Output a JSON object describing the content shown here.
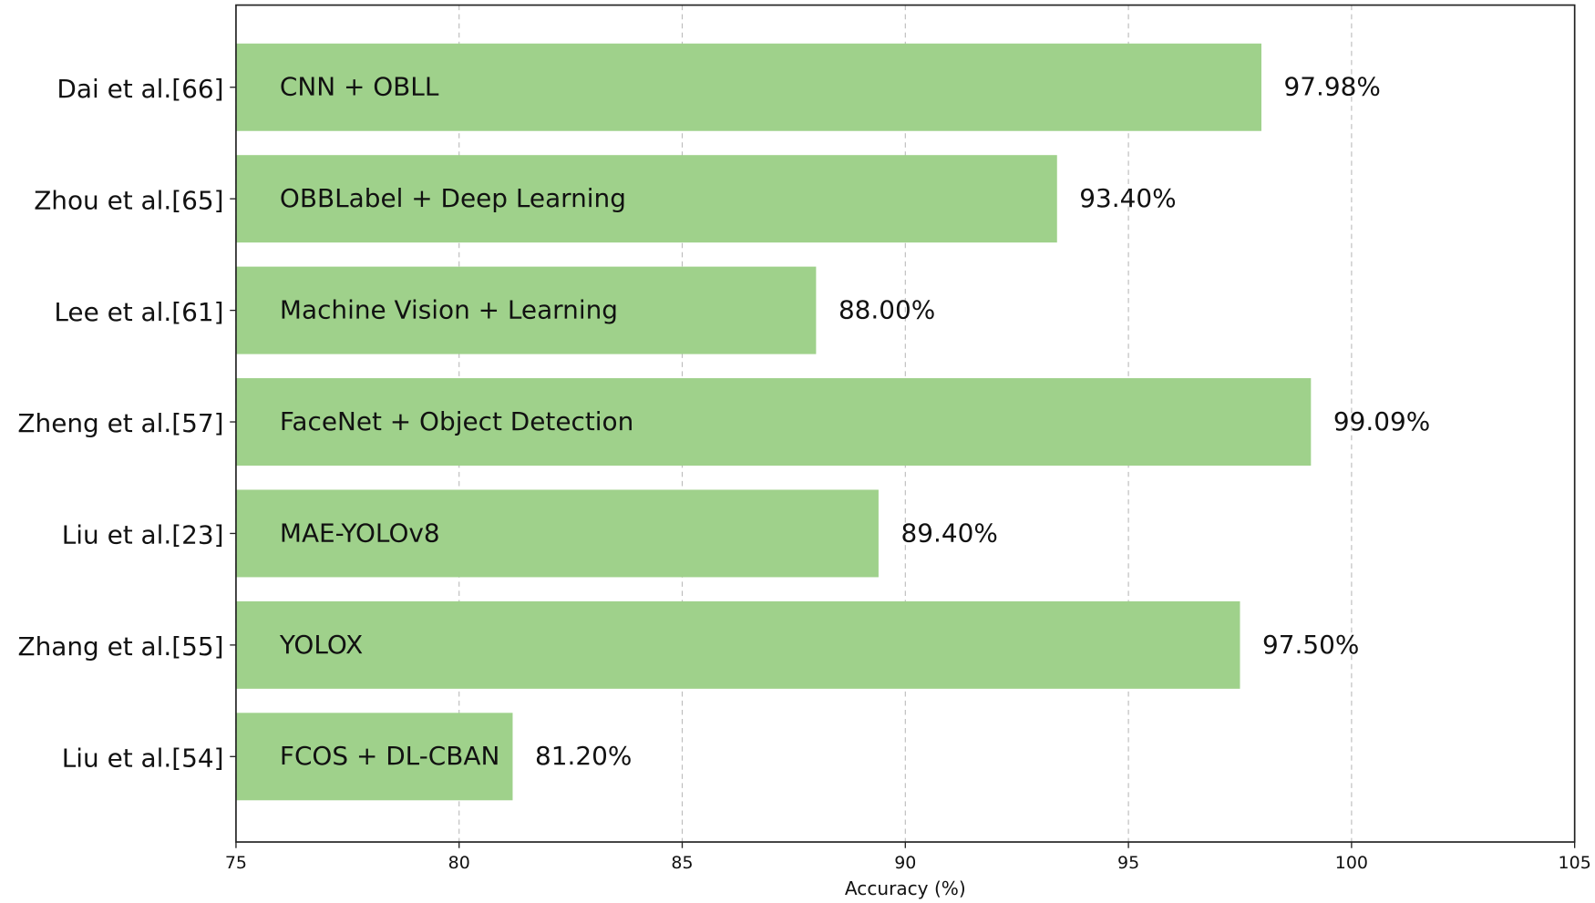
{
  "chart_data": {
    "type": "bar",
    "orientation": "horizontal",
    "title": "",
    "xlabel": "Accuracy (%)",
    "ylabel": "",
    "xlim": [
      75,
      105
    ],
    "xticks": [
      "75",
      "80",
      "85",
      "90",
      "95",
      "100",
      "105"
    ],
    "grid": "vertical dashed",
    "bar_color": "#9fd18b",
    "categories": [
      "Dai et al.[66]",
      "Zhou et al.[65]",
      "Lee et al.[61]",
      "Zheng et al.[57]",
      "Liu et al.[23]",
      "Zhang et al.[55]",
      "Liu et al.[54]"
    ],
    "methods": [
      "CNN + OBLL",
      "OBBLabel + Deep Learning",
      "Machine Vision + Learning",
      "FaceNet + Object Detection",
      "MAE-YOLOv8",
      "YOLOX",
      "FCOS + DL-CBAN"
    ],
    "values": [
      97.98,
      93.4,
      88.0,
      99.09,
      89.4,
      97.5,
      81.2
    ],
    "value_labels": [
      "97.98%",
      "93.40%",
      "88.00%",
      "99.09%",
      "89.40%",
      "97.50%",
      "81.20%"
    ]
  }
}
